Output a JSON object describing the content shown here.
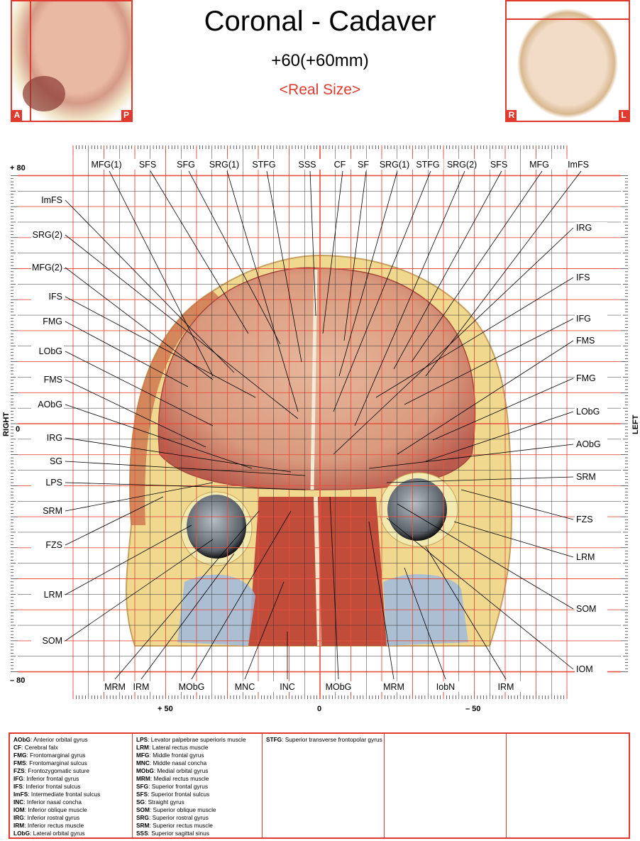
{
  "header": {
    "title": "Coronal - Cadaver",
    "subtitle": "+60(+60mm)",
    "scale_note": "<Real Size>"
  },
  "thumbnails": {
    "sagittal": {
      "left_label": "A",
      "right_label": "P"
    },
    "axial": {
      "left_label": "R",
      "right_label": "L"
    }
  },
  "axes": {
    "left_side_label": "RIGHT",
    "right_side_label": "LEFT",
    "y_ticks": [
      "+ 80",
      "0",
      "– 80"
    ],
    "x_ticks": [
      "+ 50",
      "0",
      "– 50"
    ]
  },
  "labels": {
    "top": [
      "MFG(1)",
      "SFS",
      "SFG",
      "SRG(1)",
      "STFG",
      "SSS",
      "CF",
      "SF",
      "SRG(1)",
      "STFG",
      "SRG(2)",
      "SFS",
      "MFG",
      "ImFS"
    ],
    "left": [
      "ImFS",
      "SRG(2)",
      "MFG(2)",
      "IFS",
      "FMG",
      "LObG",
      "FMS",
      "AObG",
      "IRG",
      "SG",
      "LPS",
      "SRM",
      "FZS",
      "LRM",
      "SOM"
    ],
    "right": [
      "IRG",
      "IFS",
      "IFG",
      "FMS",
      "FMG",
      "LObG",
      "AObG",
      "SRM",
      "FZS",
      "LRM",
      "SOM",
      "IOM"
    ],
    "bottom": [
      "MRM",
      "IRM",
      "MObG",
      "MNC",
      "INC",
      "MObG",
      "MRM",
      "IobN",
      "IRM"
    ]
  },
  "legend": [
    [
      {
        "abbr": "AObG",
        "desc": "Anterior orbital gyrus"
      },
      {
        "abbr": "CF",
        "desc": "Cerebral falx"
      },
      {
        "abbr": "FMG",
        "desc": "Frontomarginal gyrus"
      },
      {
        "abbr": "FMS",
        "desc": "Frontomarginal sulcus"
      },
      {
        "abbr": "FZS",
        "desc": "Frontozygomatic suture"
      },
      {
        "abbr": "IFG",
        "desc": "Inferior frontal gyrus"
      },
      {
        "abbr": "IFS",
        "desc": "Inferior frontal sulcus"
      },
      {
        "abbr": "ImFS",
        "desc": "Intermediate frontal sulcus"
      },
      {
        "abbr": "INC",
        "desc": "Inferior nasal concha"
      },
      {
        "abbr": "IOM",
        "desc": "Inferior oblique muscle"
      },
      {
        "abbr": "IRG",
        "desc": "Inferior rostral gyrus"
      },
      {
        "abbr": "IRM",
        "desc": "Inferior rectus muscle"
      },
      {
        "abbr": "LObG",
        "desc": "Lateral orbital gyrus"
      }
    ],
    [
      {
        "abbr": "LPS",
        "desc": "Levator palpebrae superioris muscle"
      },
      {
        "abbr": "LRM",
        "desc": "Lateral rectus muscle"
      },
      {
        "abbr": "MFG",
        "desc": "Middle frontal gyrus"
      },
      {
        "abbr": "MNC",
        "desc": "Middle nasal concha"
      },
      {
        "abbr": "MObG",
        "desc": "Medial orbital gyrus"
      },
      {
        "abbr": "MRM",
        "desc": "Medial rectus muscle"
      },
      {
        "abbr": "SFG",
        "desc": "Superior frontal gyrus"
      },
      {
        "abbr": "SFS",
        "desc": "Superior frontal sulcus"
      },
      {
        "abbr": "SG",
        "desc": "Straight gyrus"
      },
      {
        "abbr": "SOM",
        "desc": "Superior oblique muscle"
      },
      {
        "abbr": "SRG",
        "desc": "Superior rostral gyrus"
      },
      {
        "abbr": "SRM",
        "desc": "Superior rectus muscle"
      },
      {
        "abbr": "SSS",
        "desc": "Superior sagittal sinus"
      }
    ],
    [
      {
        "abbr": "STFG",
        "desc": "Superior transverse frontopolar gyrus"
      }
    ],
    [],
    []
  ],
  "colors": {
    "accent_red": "#e03a2f",
    "grid_red": "#e8503f"
  }
}
